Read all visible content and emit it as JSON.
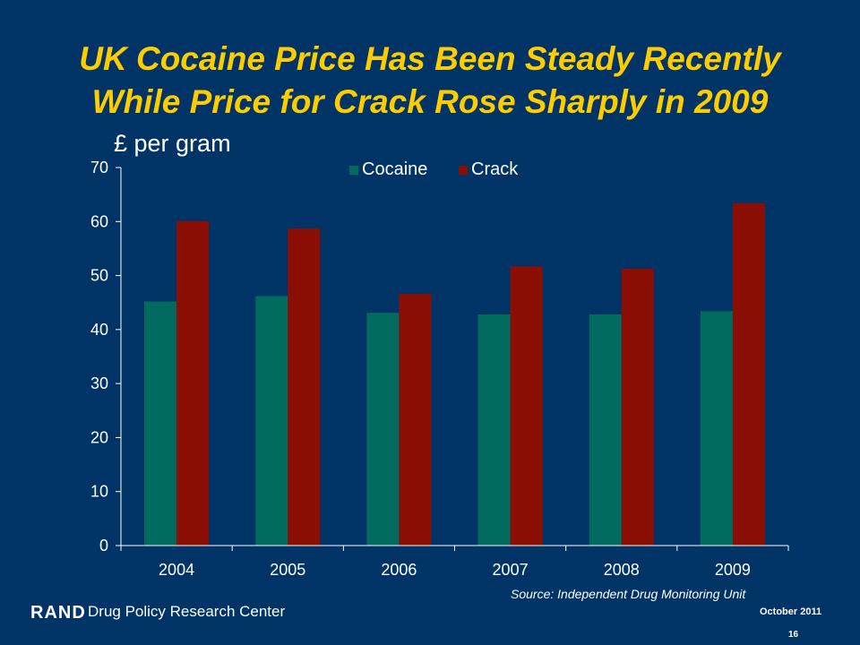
{
  "title_line1": "UK Cocaine Price Has Been Steady Recently",
  "title_line2": "While Price for Crack Rose Sharply in 2009",
  "footer": {
    "logo": "RAND",
    "org": "Drug Policy Research Center",
    "source": "Source:  Independent Drug Monitoring Unit",
    "date": "October 2011",
    "page": "16"
  },
  "colors": {
    "background": "#003366",
    "title": "#ffcc00",
    "cocaine": "#006b5e",
    "crack": "#8b0e04"
  },
  "chart_data": {
    "type": "bar",
    "ylabel": "£ per gram",
    "categories": [
      "2004",
      "2005",
      "2006",
      "2007",
      "2008",
      "2009"
    ],
    "series": [
      {
        "name": "Cocaine",
        "values": [
          45.2,
          46.2,
          43.1,
          42.8,
          42.8,
          43.4
        ]
      },
      {
        "name": "Crack",
        "values": [
          60.1,
          58.7,
          46.6,
          51.7,
          51.3,
          63.4
        ]
      }
    ],
    "ylim": [
      0,
      70
    ],
    "yticks": [
      0,
      10,
      20,
      30,
      40,
      50,
      60,
      70
    ],
    "legend_position": "top-center",
    "grid": false
  }
}
